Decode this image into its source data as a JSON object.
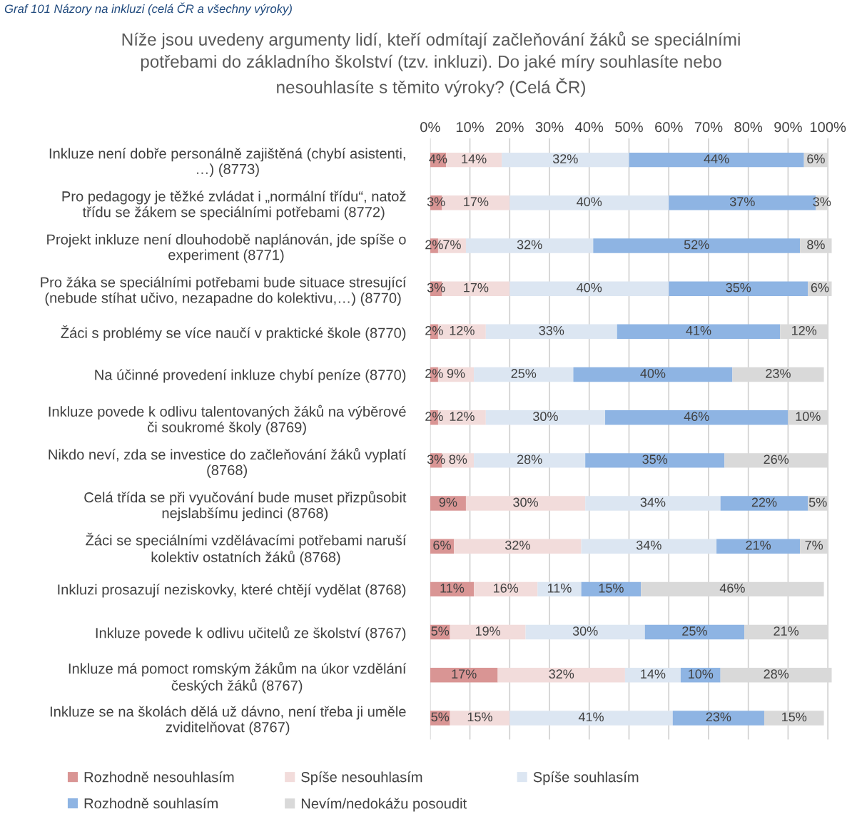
{
  "chart_data": {
    "type": "bar",
    "orientation": "horizontal",
    "stacked": true,
    "title": "Níže jsou uvedeny argumenty lidí, kteří odmítají začleňování žáků se speciálními\npotřebami do základního školství (tzv. inkluzi). Do jaké míry souhlasíte nebo\nnesouhlasíte s těmito výroky? (Celá ČR)",
    "annotations": [
      "Graf 101 Názory na inkluzi (celá ČR a všechny výroky)"
    ],
    "categories": [
      "Inkluze není dobře personálně zajištěná (chybí asistenti,\n…) (8773)",
      "Pro pedagogy je těžké zvládat i „normální třídu“, natož\ntřídu se žákem se speciálními potřebami (8772)",
      "Projekt inkluze není dlouhodobě naplánován, jde spíše o\nexperiment (8771)",
      "Pro žáka se speciálními potřebami bude situace stresující\n(nebude stíhat učivo, nezapadne do kolektivu,…) (8770)",
      "Žáci s problémy se více naučí v praktické škole (8770)",
      "Na účinné provedení inkluze chybí peníze (8770)",
      "Inkluze povede k odlivu talentovaných žáků na výběrové\nči soukromé školy (8769)",
      "Nikdo neví, zda se investice do začleňování žáků vyplatí\n(8768)",
      "Celá třída se při vyučování bude muset přizpůsobit\nnejslabšímu jedinci (8768)",
      "Žáci se speciálními vzdělávacími potřebami naruší\nkolektiv ostatních žáků (8768)",
      "Inkluzi prosazují neziskovky, které chtějí vydělat (8768)",
      "Inkluze povede k odlivu učitelů ze školství (8767)",
      "Inkluze má pomoct romským žákům na úkor vzdělání\nčeských žáků (8767)",
      "Inkluze se na školách dělá už dávno, není třeba ji uměle\nzviditelňovat (8767)"
    ],
    "series": [
      {
        "name": "Rozhodně nesouhlasím",
        "color": "#d99594",
        "values": [
          4,
          3,
          2,
          3,
          2,
          2,
          2,
          3,
          9,
          6,
          11,
          5,
          17,
          5
        ],
        "value_labels": [
          "4%",
          "3%",
          "2%",
          "3%",
          "2%",
          "2%",
          "2%",
          "3%",
          "9%",
          "6%",
          "11%",
          "5%",
          "17%",
          "5%"
        ]
      },
      {
        "name": "Spíše nesouhlasím",
        "color": "#f2dcdb",
        "values": [
          14,
          17,
          7,
          17,
          12,
          9,
          12,
          8,
          30,
          32,
          16,
          19,
          32,
          15
        ],
        "value_labels": [
          "14%",
          "17%",
          "7%",
          "17%",
          "12%",
          "9%",
          "12%",
          "8%",
          "30%",
          "32%",
          "16%",
          "19%",
          "32%",
          "15%"
        ]
      },
      {
        "name": "Spíše souhlasím",
        "color": "#dce6f2",
        "values": [
          32,
          40,
          32,
          40,
          33,
          25,
          30,
          28,
          34,
          34,
          11,
          30,
          14,
          41
        ],
        "value_labels": [
          "32%",
          "40%",
          "32%",
          "40%",
          "33%",
          "25%",
          "30%",
          "28%",
          "34%",
          "34%",
          "11%",
          "30%",
          "14%",
          "41%"
        ]
      },
      {
        "name": "Rozhodně souhlasím",
        "color": "#8eb4e3",
        "values": [
          44,
          37,
          52,
          35,
          41,
          40,
          46,
          35,
          22,
          21,
          15,
          25,
          10,
          23
        ],
        "value_labels": [
          "44%",
          "37%",
          "52%",
          "35%",
          "41%",
          "40%",
          "46%",
          "35%",
          "22%",
          "21%",
          "15%",
          "25%",
          "10%",
          "23%"
        ]
      },
      {
        "name": "Nevím/nedokážu posoudit",
        "color": "#d9d9d9",
        "values": [
          6,
          3,
          8,
          6,
          12,
          23,
          10,
          26,
          5,
          7,
          46,
          21,
          28,
          15
        ],
        "value_labels": [
          "6%",
          "3%",
          "8%",
          "6%",
          "12%",
          "23%",
          "10%",
          "26%",
          "5%",
          "7%",
          "46%",
          "21%",
          "28%",
          "15%"
        ]
      }
    ],
    "xlim": [
      0,
      101
    ],
    "xticks": [
      {
        "value": 0,
        "label": "0%"
      },
      {
        "value": 10,
        "label": "10%"
      },
      {
        "value": 20,
        "label": "20%"
      },
      {
        "value": 30,
        "label": "30%"
      },
      {
        "value": 40,
        "label": "40%"
      },
      {
        "value": 50,
        "label": "50%"
      },
      {
        "value": 60,
        "label": "60%"
      },
      {
        "value": 70,
        "label": "70%"
      },
      {
        "value": 80,
        "label": "80%"
      },
      {
        "value": 90,
        "label": "90%"
      },
      {
        "value": 100,
        "label": "100%"
      }
    ],
    "grid": "x",
    "legend": "bottom"
  }
}
